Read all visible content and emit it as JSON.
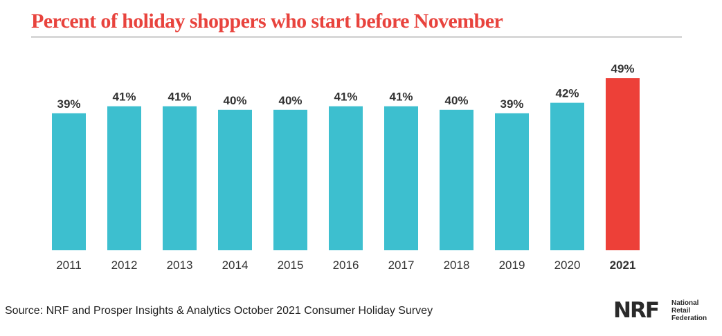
{
  "title": "Percent of holiday shoppers who start before November",
  "source": "Source: NRF and Prosper Insights & Analytics October 2021 Consumer Holiday Survey",
  "logo": {
    "mark": "NRF",
    "lines": [
      "National",
      "Retail",
      "Federation"
    ]
  },
  "colors": {
    "title": "#e8433d",
    "bar": "#3dbfcf",
    "highlight_bar": "#ed4038",
    "label": "#333333",
    "axis_label": "#333333"
  },
  "chart_data": {
    "type": "bar",
    "title": "Percent of holiday shoppers who start before November",
    "categories": [
      "2011",
      "2012",
      "2013",
      "2014",
      "2015",
      "2016",
      "2017",
      "2018",
      "2019",
      "2020",
      "2021"
    ],
    "values": [
      39,
      41,
      41,
      40,
      40,
      41,
      41,
      40,
      39,
      42,
      49
    ],
    "value_labels": [
      "39%",
      "41%",
      "41%",
      "40%",
      "40%",
      "41%",
      "41%",
      "40%",
      "39%",
      "42%",
      "49%"
    ],
    "highlight": "2021",
    "unit": "%",
    "xlabel": "",
    "ylabel": "",
    "grid": false
  }
}
